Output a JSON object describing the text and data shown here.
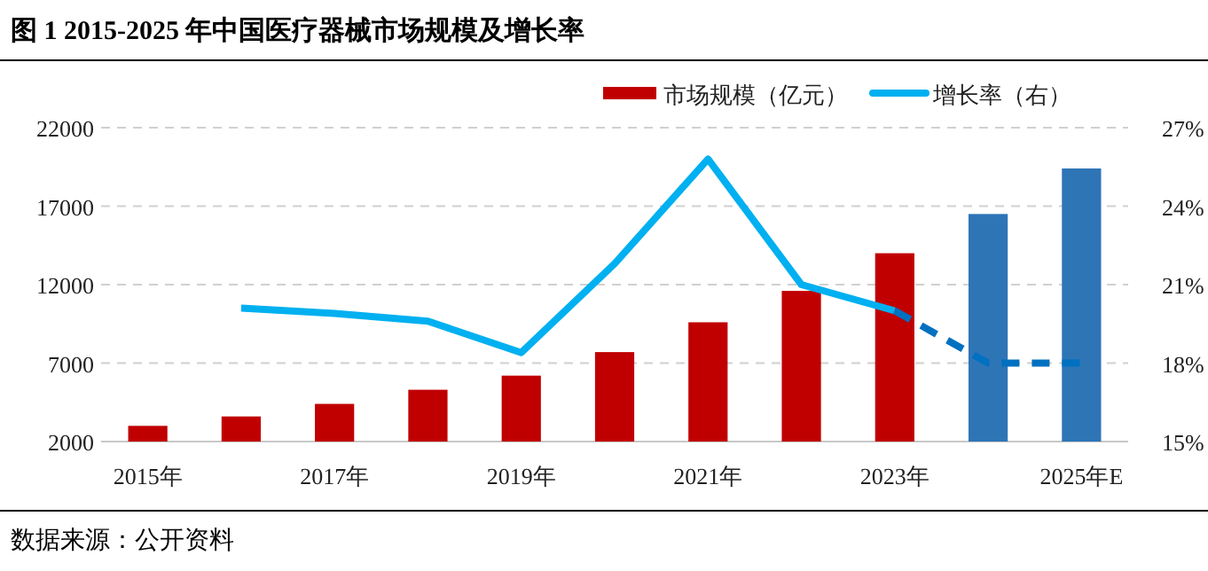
{
  "chart_data": {
    "type": "bar",
    "title": "图 1 2015-2025 年中国医疗器械市场规模及增长率",
    "categories": [
      "2015年",
      null,
      "2017年",
      null,
      "2019年",
      null,
      "2021年",
      null,
      "2023年",
      null,
      "2025年E"
    ],
    "series": [
      {
        "name": "市场规模（亿元）",
        "color": "#c00000",
        "colors": [
          "#c00000",
          "#c00000",
          "#c00000",
          "#c00000",
          "#c00000",
          "#c00000",
          "#c00000",
          "#c00000",
          "#c00000",
          "#2e75b6",
          "#2e75b6"
        ],
        "values": [
          3000,
          3600,
          4400,
          5300,
          6200,
          7700,
          9600,
          11600,
          14000,
          16500,
          19400
        ]
      },
      {
        "name": "增长率（右）",
        "type": "line",
        "axis": "y2",
        "color": "#00b0f0",
        "line_style": "solid",
        "values": [
          null,
          20.1,
          19.9,
          19.6,
          18.4,
          21.8,
          25.8,
          21.0,
          20.0,
          null,
          null
        ]
      },
      {
        "type": "line",
        "axis": "y2",
        "color": "#0070c0",
        "line_style": "dashed",
        "values": [
          null,
          null,
          null,
          null,
          null,
          null,
          null,
          null,
          20.0,
          18.0,
          18.0
        ]
      }
    ],
    "ylim": [
      2000,
      22000
    ],
    "yticks": [
      2000,
      7000,
      12000,
      17000,
      22000
    ],
    "y2lim": [
      15,
      27
    ],
    "y2ticks": [
      {
        "value": 15,
        "label": "15%"
      },
      {
        "value": 18,
        "label": "18%"
      },
      {
        "value": 21,
        "label": "21%"
      },
      {
        "value": 24,
        "label": "24%"
      },
      {
        "value": 27,
        "label": "27%"
      }
    ],
    "grid": "y",
    "legend": "top right",
    "annotations": [
      "数据来源：公开资料"
    ]
  }
}
